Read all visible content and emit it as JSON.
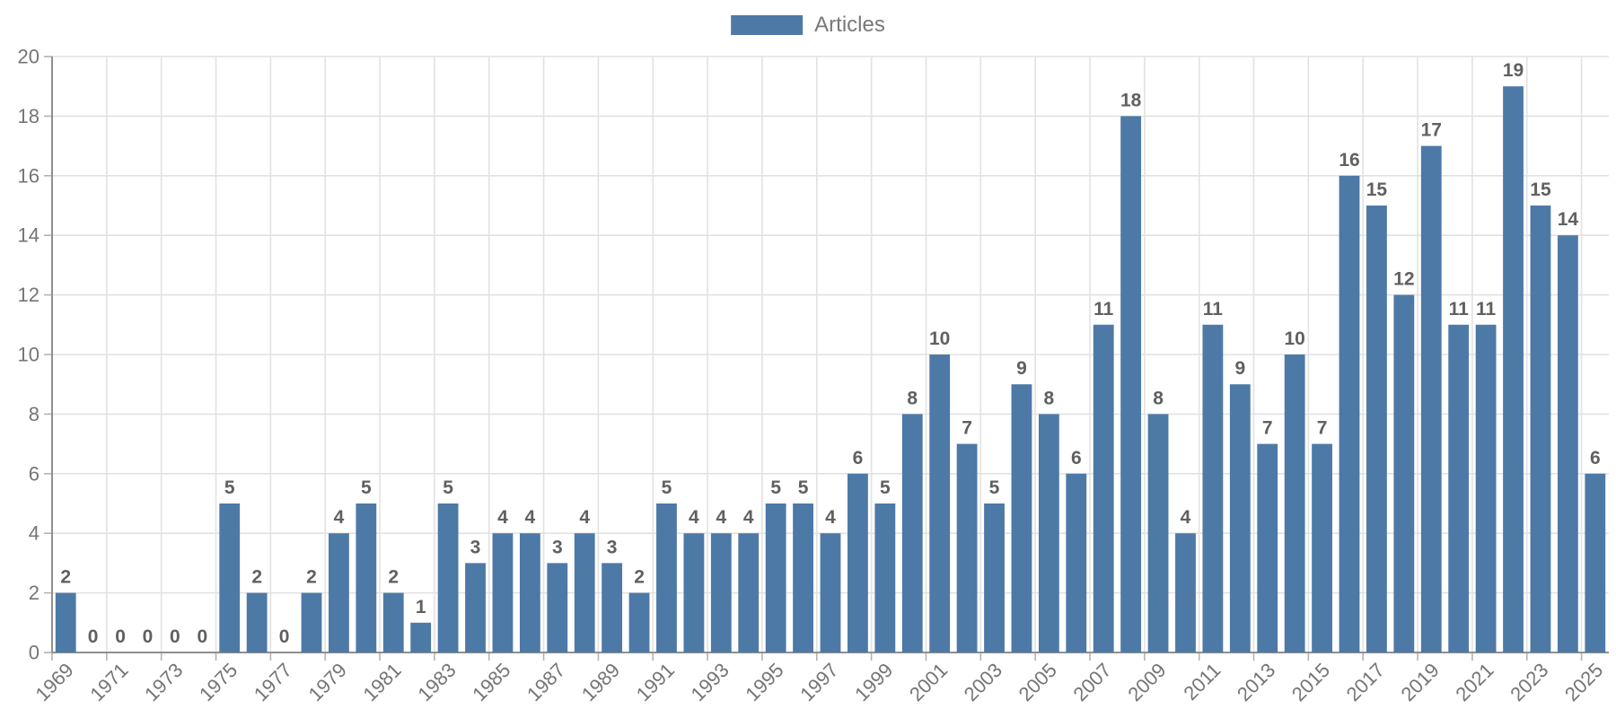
{
  "chart_data": {
    "type": "bar",
    "title": "",
    "legend": "Articles",
    "legend_position": "top-center",
    "grid": true,
    "xlabel": "",
    "ylabel": "",
    "ylim": [
      0,
      20
    ],
    "ytick_step": 2,
    "y_tick_labels": [
      "0",
      "2",
      "4",
      "6",
      "8",
      "10",
      "12",
      "14",
      "16",
      "18",
      "20"
    ],
    "xtick_interval": 2,
    "x_tick_labels": [
      "1969",
      "1971",
      "1973",
      "1975",
      "1977",
      "1979",
      "1981",
      "1983",
      "1985",
      "1987",
      "1989",
      "1991",
      "1993",
      "1995",
      "1997",
      "1999",
      "2001",
      "2003",
      "2005",
      "2007",
      "2009",
      "2011",
      "2013",
      "2015",
      "2017",
      "2019",
      "2021",
      "2023",
      "2025"
    ],
    "categories": [
      "1969",
      "1970",
      "1971",
      "1972",
      "1973",
      "1974",
      "1975",
      "1976",
      "1977",
      "1978",
      "1979",
      "1980",
      "1981",
      "1982",
      "1983",
      "1984",
      "1985",
      "1986",
      "1987",
      "1988",
      "1989",
      "1990",
      "1991",
      "1992",
      "1993",
      "1994",
      "1995",
      "1996",
      "1997",
      "1998",
      "1999",
      "2000",
      "2001",
      "2002",
      "2003",
      "2004",
      "2005",
      "2006",
      "2007",
      "2008",
      "2009",
      "2010",
      "2011",
      "2012",
      "2013",
      "2014",
      "2015",
      "2016",
      "2017",
      "2018",
      "2019",
      "2020",
      "2021",
      "2022",
      "2023",
      "2024",
      "2025"
    ],
    "values": [
      2,
      0,
      0,
      0,
      0,
      0,
      5,
      2,
      0,
      2,
      4,
      5,
      2,
      1,
      5,
      3,
      4,
      4,
      3,
      4,
      3,
      2,
      5,
      4,
      4,
      4,
      5,
      5,
      4,
      6,
      5,
      8,
      10,
      7,
      5,
      9,
      8,
      6,
      11,
      18,
      8,
      4,
      11,
      9,
      7,
      10,
      7,
      16,
      15,
      12,
      17,
      11,
      11,
      19,
      15,
      14,
      6
    ],
    "bar_color": "#4d79a7",
    "data_label_color": "#606060",
    "axis_label_color": "#757575",
    "gridline_color": "#e2e2e2",
    "axis_line_color": "#8f8f8f"
  }
}
